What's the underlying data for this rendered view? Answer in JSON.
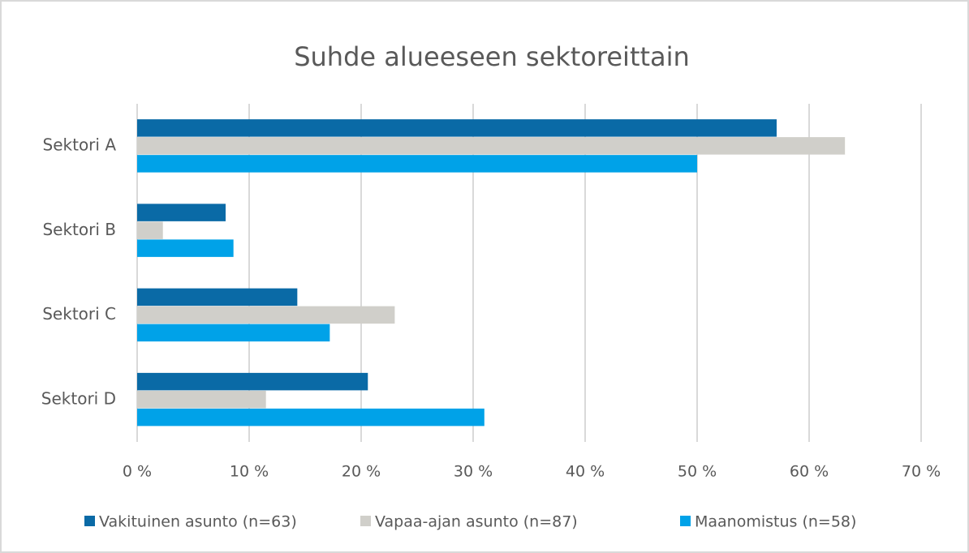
{
  "chart_data": {
    "type": "hbar",
    "title": "Suhde alueeseen sektoreittain",
    "categories": [
      "Sektori A",
      "Sektori B",
      "Sektori C",
      "Sektori D"
    ],
    "series": [
      {
        "name": "Vakituinen asunto (n=63)",
        "color": "#0a6aa6",
        "values": [
          57.1,
          7.9,
          14.3,
          20.6
        ]
      },
      {
        "name": "Vapaa-ajan asunto (n=87)",
        "color": "#d0cfca",
        "values": [
          63.2,
          2.3,
          23.0,
          11.5
        ]
      },
      {
        "name": "Maanomistus (n=58)",
        "color": "#00a2e8",
        "values": [
          50.0,
          8.6,
          17.2,
          31.0
        ]
      }
    ],
    "xlim": [
      0,
      70
    ],
    "xticks": [
      {
        "value": 0,
        "label": "0 %"
      },
      {
        "value": 10,
        "label": "10 %"
      },
      {
        "value": 20,
        "label": "20 %"
      },
      {
        "value": 30,
        "label": "30 %"
      },
      {
        "value": 40,
        "label": "40 %"
      },
      {
        "value": 50,
        "label": "50 %"
      },
      {
        "value": 60,
        "label": "60 %"
      },
      {
        "value": 70,
        "label": "70 %"
      }
    ],
    "grid": true,
    "legend": "bottom"
  }
}
